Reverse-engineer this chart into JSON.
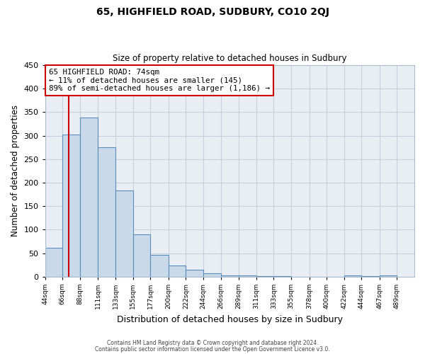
{
  "title": "65, HIGHFIELD ROAD, SUDBURY, CO10 2QJ",
  "subtitle": "Size of property relative to detached houses in Sudbury",
  "xlabel": "Distribution of detached houses by size in Sudbury",
  "ylabel": "Number of detached properties",
  "bar_left_edges": [
    44,
    66,
    88,
    111,
    133,
    155,
    177,
    200,
    222,
    244,
    266,
    289,
    311,
    333,
    355,
    378,
    400,
    422,
    444,
    467
  ],
  "bar_heights": [
    62,
    303,
    338,
    275,
    184,
    90,
    46,
    23,
    15,
    7,
    2,
    2,
    1,
    1,
    0,
    0,
    0,
    3,
    1,
    2
  ],
  "bar_widths": [
    22,
    22,
    23,
    22,
    22,
    22,
    23,
    22,
    22,
    22,
    23,
    22,
    22,
    22,
    23,
    22,
    22,
    22,
    23,
    22
  ],
  "tick_labels": [
    "44sqm",
    "66sqm",
    "88sqm",
    "111sqm",
    "133sqm",
    "155sqm",
    "177sqm",
    "200sqm",
    "222sqm",
    "244sqm",
    "266sqm",
    "289sqm",
    "311sqm",
    "333sqm",
    "355sqm",
    "378sqm",
    "400sqm",
    "422sqm",
    "444sqm",
    "467sqm",
    "489sqm"
  ],
  "tick_positions": [
    44,
    66,
    88,
    111,
    133,
    155,
    177,
    200,
    222,
    244,
    266,
    289,
    311,
    333,
    355,
    378,
    400,
    422,
    444,
    467,
    489
  ],
  "xlim_left": 44,
  "xlim_right": 511,
  "ylim": [
    0,
    450
  ],
  "yticks": [
    0,
    50,
    100,
    150,
    200,
    250,
    300,
    350,
    400,
    450
  ],
  "bar_color": "#c9d9ea",
  "bar_edge_color": "#5b8db8",
  "grid_color": "#c8d0dc",
  "bg_color": "#e8eef4",
  "fig_bg_color": "#ffffff",
  "red_line_x": 74,
  "annotation_title": "65 HIGHFIELD ROAD: 74sqm",
  "annotation_line1": "← 11% of detached houses are smaller (145)",
  "annotation_line2": "89% of semi-detached houses are larger (1,186) →",
  "annotation_box_facecolor": "#ffffff",
  "annotation_box_edgecolor": "#cc0000",
  "footer1": "Contains HM Land Registry data © Crown copyright and database right 2024.",
  "footer2": "Contains public sector information licensed under the Open Government Licence v3.0."
}
